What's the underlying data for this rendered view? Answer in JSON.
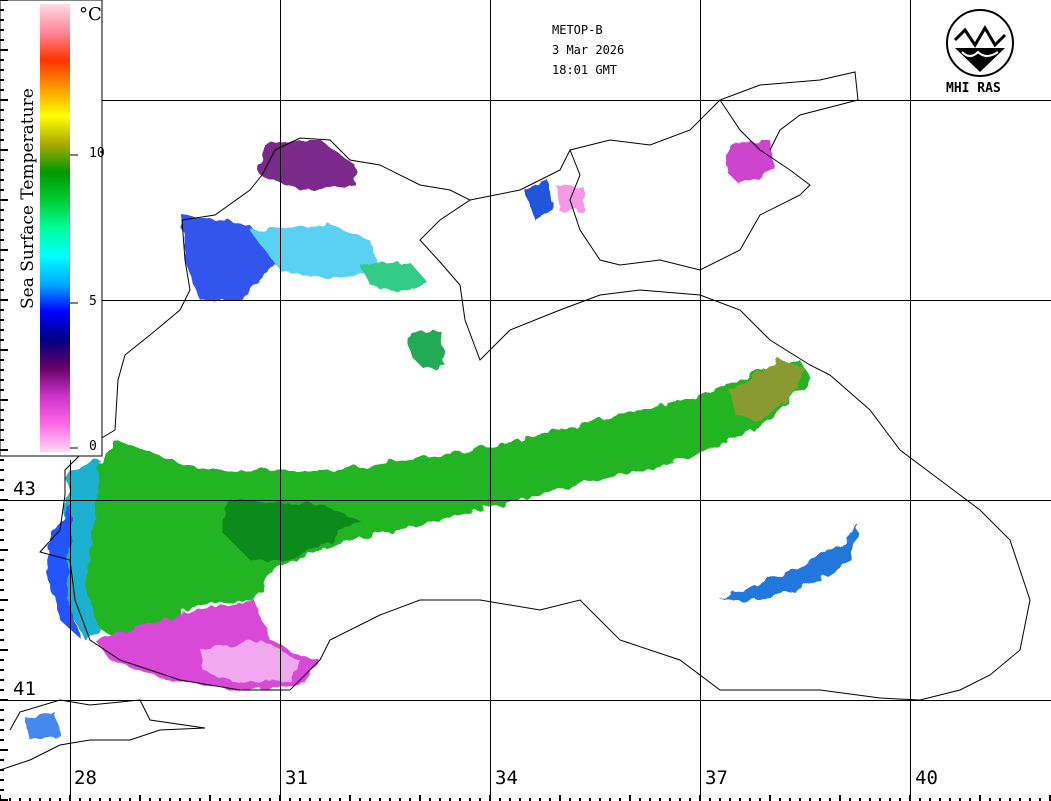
{
  "header": {
    "satellite": "METOP-B",
    "date": "3 Mar 2026",
    "time": "18:01 GMT"
  },
  "logo": {
    "text": "MHI RAS",
    "icon": "mhi-ras-logo-icon"
  },
  "colorbar": {
    "title": "Sea Surface Temperature",
    "unit": "°C",
    "ticks": [
      "10",
      "5",
      "0"
    ],
    "colors": [
      "#ffd9f2",
      "#ff66e6",
      "#cc33cc",
      "#660066",
      "#000080",
      "#0000ff",
      "#00aaff",
      "#00ffff",
      "#00ff99",
      "#00cc33",
      "#009900",
      "#aaaa00",
      "#ffff00",
      "#ff9900",
      "#ff3300",
      "#ff8899",
      "#ffd9e6"
    ]
  },
  "grid": {
    "latitudes": [
      "43",
      "41"
    ],
    "longitudes": [
      "28",
      "31",
      "34",
      "37",
      "40"
    ]
  },
  "legend_colors": {
    "land": "#ffffff",
    "cloud": "#ffffff",
    "warm_sst": "#22b022",
    "cold_sst": "#e040e0"
  }
}
